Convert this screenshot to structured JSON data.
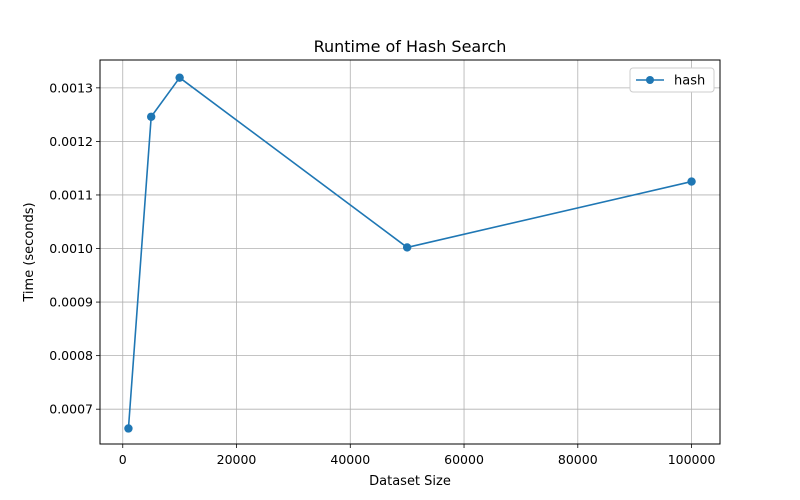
{
  "chart_data": {
    "type": "line",
    "title": "Runtime of Hash Search",
    "xlabel": "Dataset Size",
    "ylabel": "Time (seconds)",
    "xlim": [
      -4000,
      105000
    ],
    "ylim": [
      0.000635,
      0.001352
    ],
    "x_ticks": [
      0,
      20000,
      40000,
      60000,
      80000,
      100000
    ],
    "x_tick_labels": [
      "0",
      "20000",
      "40000",
      "60000",
      "80000",
      "100000"
    ],
    "y_ticks": [
      0.0007,
      0.0008,
      0.0009,
      0.001,
      0.0011,
      0.0012,
      0.0013
    ],
    "y_tick_labels": [
      "0.0007",
      "0.0008",
      "0.0009",
      "0.0010",
      "0.0011",
      "0.0012",
      "0.0013"
    ],
    "grid": true,
    "legend_position": "top-right",
    "series": [
      {
        "name": "hash",
        "color": "#1f77b4",
        "marker": "circle",
        "x": [
          1000,
          5000,
          10000,
          50000,
          100000
        ],
        "y": [
          0.000664,
          0.001246,
          0.001319,
          0.001002,
          0.001125
        ]
      }
    ]
  }
}
